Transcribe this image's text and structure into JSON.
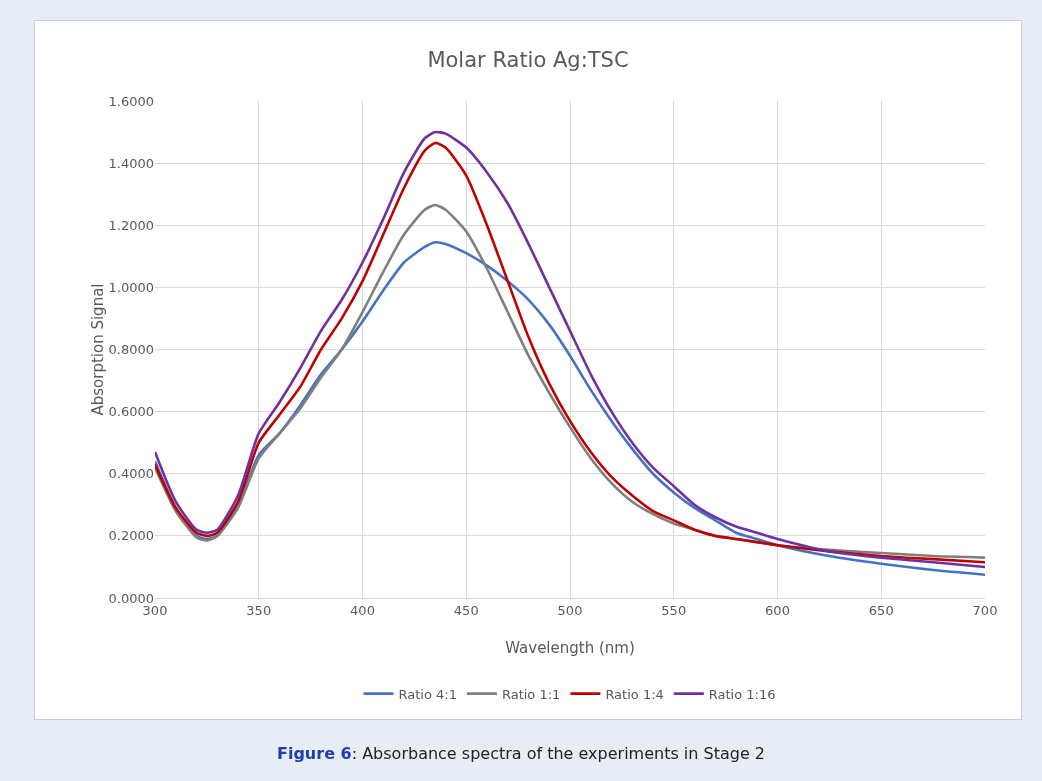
{
  "chart_data": {
    "type": "line",
    "title": "Molar Ratio Ag:TSC",
    "xlabel": "Wavelength (nm)",
    "ylabel": "Absorption Signal",
    "x": [
      300,
      310,
      320,
      325,
      330,
      340,
      350,
      360,
      370,
      380,
      390,
      400,
      410,
      420,
      430,
      435,
      440,
      450,
      460,
      470,
      480,
      490,
      500,
      510,
      520,
      530,
      540,
      550,
      560,
      570,
      580,
      590,
      600,
      625,
      650,
      675,
      700
    ],
    "series": [
      {
        "name": "Ratio 4:1",
        "color": "#4472c4",
        "values": [
          0.44,
          0.29,
          0.2,
          0.19,
          0.2,
          0.3,
          0.46,
          0.53,
          0.62,
          0.72,
          0.8,
          0.89,
          0.99,
          1.08,
          1.13,
          1.145,
          1.14,
          1.11,
          1.07,
          1.02,
          0.96,
          0.88,
          0.78,
          0.67,
          0.57,
          0.48,
          0.4,
          0.34,
          0.29,
          0.25,
          0.21,
          0.19,
          0.17,
          0.135,
          0.11,
          0.09,
          0.075
        ]
      },
      {
        "name": "Ratio 1:1",
        "color": "#7f7f7f",
        "values": [
          0.42,
          0.28,
          0.195,
          0.185,
          0.2,
          0.29,
          0.45,
          0.53,
          0.61,
          0.71,
          0.8,
          0.92,
          1.05,
          1.17,
          1.25,
          1.265,
          1.25,
          1.18,
          1.06,
          0.92,
          0.78,
          0.66,
          0.55,
          0.45,
          0.37,
          0.31,
          0.27,
          0.24,
          0.22,
          0.2,
          0.19,
          0.18,
          0.17,
          0.155,
          0.145,
          0.135,
          0.13
        ]
      },
      {
        "name": "Ratio 1:4",
        "color": "#c00000",
        "values": [
          0.43,
          0.29,
          0.21,
          0.2,
          0.21,
          0.31,
          0.5,
          0.59,
          0.68,
          0.8,
          0.9,
          1.02,
          1.17,
          1.32,
          1.44,
          1.465,
          1.45,
          1.36,
          1.2,
          1.02,
          0.84,
          0.69,
          0.57,
          0.47,
          0.39,
          0.33,
          0.28,
          0.25,
          0.22,
          0.2,
          0.19,
          0.18,
          0.17,
          0.15,
          0.135,
          0.125,
          0.115
        ]
      },
      {
        "name": "Ratio 1:16",
        "color": "#7030a0",
        "values": [
          0.47,
          0.31,
          0.22,
          0.21,
          0.22,
          0.33,
          0.53,
          0.63,
          0.74,
          0.86,
          0.96,
          1.08,
          1.22,
          1.37,
          1.48,
          1.5,
          1.495,
          1.45,
          1.37,
          1.27,
          1.14,
          1.0,
          0.86,
          0.72,
          0.6,
          0.5,
          0.42,
          0.36,
          0.3,
          0.26,
          0.23,
          0.21,
          0.19,
          0.15,
          0.13,
          0.115,
          0.1
        ]
      }
    ],
    "xlim": [
      300,
      700
    ],
    "xticks": [
      300,
      350,
      400,
      450,
      500,
      550,
      600,
      650,
      700
    ],
    "ylim": [
      0,
      1.6
    ],
    "yticks": [
      {
        "value": 0,
        "label": "0.0000"
      },
      {
        "value": 0.2,
        "label": "0.2000"
      },
      {
        "value": 0.4,
        "label": "0.4000"
      },
      {
        "value": 0.6,
        "label": "0.6000"
      },
      {
        "value": 0.8,
        "label": "0.8000"
      },
      {
        "value": 1,
        "label": "1.0000"
      },
      {
        "value": 1.2,
        "label": "1.2000"
      },
      {
        "value": 1.4,
        "label": "1.4000"
      },
      {
        "value": 1.6,
        "label": "1.6000"
      }
    ],
    "grid": true,
    "legend": "bottom",
    "marker": "none",
    "line_style": "solid",
    "annotations": [
      "Figure 6: Absorbance spectra of the experiments in Stage 2"
    ]
  }
}
